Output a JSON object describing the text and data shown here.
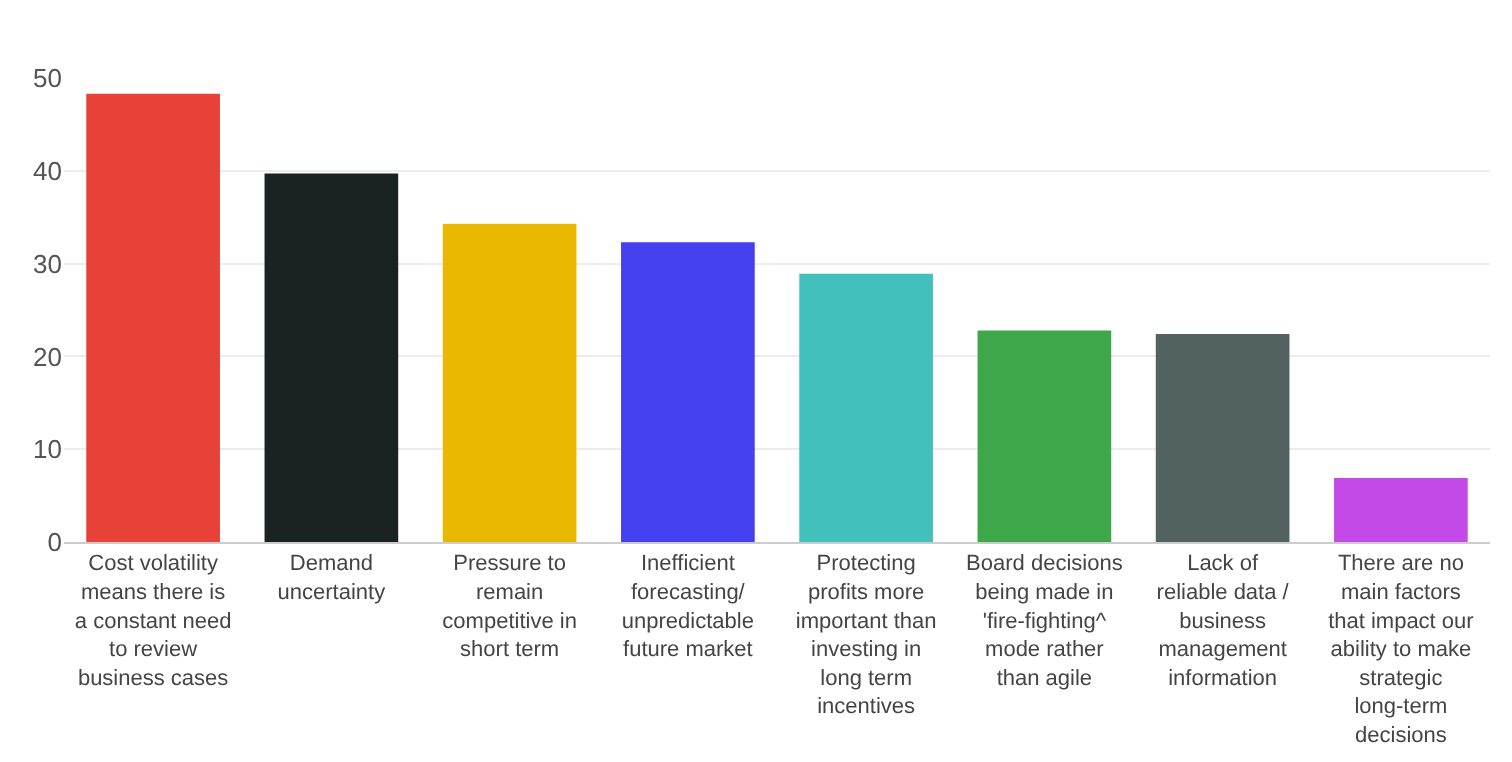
{
  "chart_data": {
    "type": "bar",
    "categories": [
      "Cost volatility means there is a constant need to review business cases",
      "Demand uncertainty",
      "Pressure to remain competitive in short term",
      "Inefficient forecasting/ unpredictable future market",
      "Protecting profits more important than investing in long term incentives",
      "Board decisions being made in 'fire-fighting^ mode rather than agile",
      "Lack of reliable data / business management information",
      "There are no main factors that impact our ability to make strategic long-term decisions"
    ],
    "values": [
      48.3,
      39.7,
      34.3,
      32.3,
      28.9,
      22.8,
      22.4,
      6.9
    ],
    "colors": [
      "#e84137",
      "#1b2322",
      "#ebb800",
      "#4540ef",
      "#42c0bb",
      "#3ea74a",
      "#516261",
      "#c34ae6"
    ],
    "ylim": [
      0,
      50
    ],
    "yticks": [
      0,
      10,
      20,
      30,
      40,
      50
    ],
    "grid": "y"
  }
}
